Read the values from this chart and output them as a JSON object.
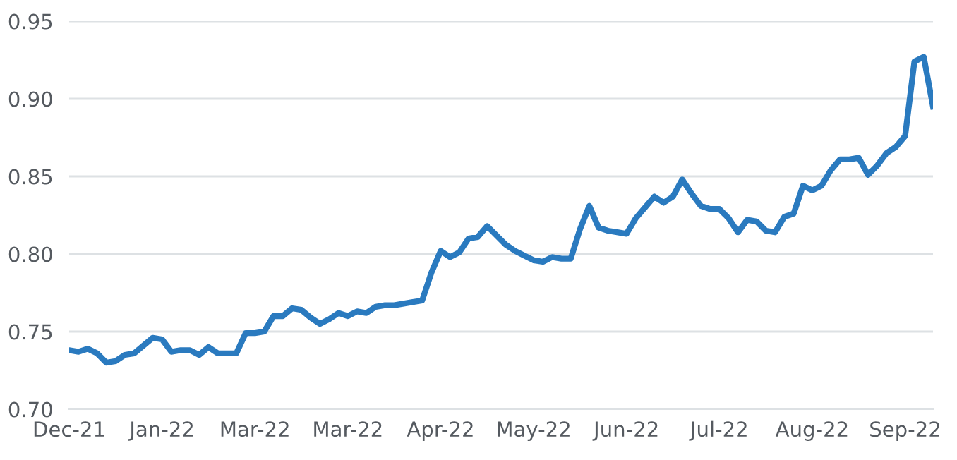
{
  "chart_data": {
    "type": "line",
    "categories": [
      "Dec-21",
      null,
      null,
      null,
      null,
      null,
      null,
      null,
      null,
      null,
      "Jan-22",
      null,
      null,
      null,
      null,
      null,
      null,
      null,
      null,
      null,
      "Mar-22",
      null,
      null,
      null,
      null,
      null,
      null,
      null,
      null,
      null,
      "Mar-22",
      null,
      null,
      null,
      null,
      null,
      null,
      null,
      null,
      null,
      "Apr-22",
      null,
      null,
      null,
      null,
      null,
      null,
      null,
      null,
      null,
      "May-22",
      null,
      null,
      null,
      null,
      null,
      null,
      null,
      null,
      null,
      "Jun-22",
      null,
      null,
      null,
      null,
      null,
      null,
      null,
      null,
      null,
      "Jul-22",
      null,
      null,
      null,
      null,
      null,
      null,
      null,
      null,
      null,
      "Aug-22",
      null,
      null,
      null,
      null,
      null,
      null,
      null,
      null,
      null,
      "Sep-22",
      null,
      null,
      null
    ],
    "series": [
      {
        "color": "#2a7abf",
        "values": [
          0.738,
          0.737,
          0.739,
          0.736,
          0.73,
          0.731,
          0.735,
          0.736,
          0.741,
          0.746,
          0.745,
          0.737,
          0.738,
          0.738,
          0.735,
          0.74,
          0.736,
          0.736,
          0.736,
          0.749,
          0.749,
          0.75,
          0.76,
          0.76,
          0.765,
          0.764,
          0.759,
          0.755,
          0.758,
          0.762,
          0.76,
          0.763,
          0.762,
          0.766,
          0.767,
          0.767,
          0.768,
          0.769,
          0.77,
          0.788,
          0.802,
          0.798,
          0.801,
          0.81,
          0.811,
          0.818,
          0.812,
          0.806,
          0.802,
          0.799,
          0.796,
          0.795,
          0.798,
          0.797,
          0.797,
          0.816,
          0.831,
          0.817,
          0.815,
          0.814,
          0.813,
          0.823,
          0.83,
          0.837,
          0.833,
          0.837,
          0.848,
          0.839,
          0.831,
          0.829,
          0.829,
          0.823,
          0.814,
          0.822,
          0.821,
          0.815,
          0.814,
          0.824,
          0.826,
          0.844,
          0.841,
          0.844,
          0.854,
          0.861,
          0.861,
          0.862,
          0.851,
          0.857,
          0.865,
          0.869,
          0.876,
          0.924,
          0.927,
          0.895
        ]
      }
    ],
    "ylim": [
      0.7,
      0.95
    ],
    "yticks": [
      {
        "value": 0.7,
        "label": "0.70"
      },
      {
        "value": 0.75,
        "label": "0.75"
      },
      {
        "value": 0.8,
        "label": "0.80"
      },
      {
        "value": 0.85,
        "label": "0.85"
      },
      {
        "value": 0.9,
        "label": "0.90"
      },
      {
        "value": 0.95,
        "label": "0.95"
      }
    ],
    "grid": "y"
  }
}
